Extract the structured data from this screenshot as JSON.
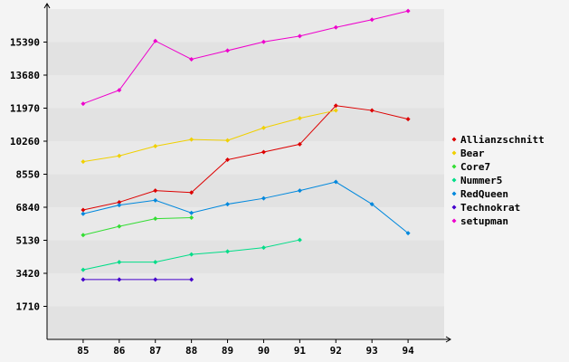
{
  "chart_data": {
    "type": "line",
    "title": "",
    "xlabel": "",
    "ylabel": "",
    "x": [
      "85",
      "86",
      "87",
      "88",
      "89",
      "90",
      "91",
      "92",
      "93",
      "94"
    ],
    "xlim": [
      84,
      95
    ],
    "ylim": [
      0,
      17100
    ],
    "yticks": [
      1710,
      3420,
      5130,
      6840,
      8550,
      10260,
      11970,
      13680,
      15390
    ],
    "ytick_labels": [
      "1710",
      "3420",
      "5130",
      "6840",
      "8550",
      "10260",
      "11970",
      "13680",
      "15390"
    ],
    "grid": "horizontal bands",
    "legend_position": "right",
    "series": [
      {
        "name": "Allianzschnitt",
        "color": "#dd0000",
        "values": [
          6700,
          7100,
          7700,
          7600,
          9300,
          9700,
          10100,
          12100,
          11850,
          11400
        ]
      },
      {
        "name": "Bear",
        "color": "#f0d000",
        "values": [
          9200,
          9500,
          10000,
          10350,
          10300,
          10950,
          11450,
          11850,
          null,
          null
        ]
      },
      {
        "name": "Core7",
        "color": "#33dd33",
        "values": [
          5400,
          5850,
          6250,
          6300,
          null,
          null,
          null,
          null,
          null,
          null
        ]
      },
      {
        "name": "Nummer5",
        "color": "#00dd88",
        "values": [
          3600,
          4000,
          4000,
          4400,
          4550,
          4750,
          5150,
          null,
          null,
          null
        ]
      },
      {
        "name": "RedQueen",
        "color": "#0088dd",
        "values": [
          6500,
          6950,
          7200,
          6550,
          7000,
          7300,
          7700,
          8150,
          7000,
          5500
        ]
      },
      {
        "name": "Technokrat",
        "color": "#4400cc",
        "values": [
          3100,
          3100,
          3100,
          3100,
          null,
          null,
          null,
          null,
          null,
          null
        ]
      },
      {
        "name": "setupman",
        "color": "#ee00cc",
        "values": [
          12200,
          12900,
          15450,
          14500,
          14950,
          15400,
          15700,
          16150,
          16550,
          17000
        ]
      }
    ]
  }
}
